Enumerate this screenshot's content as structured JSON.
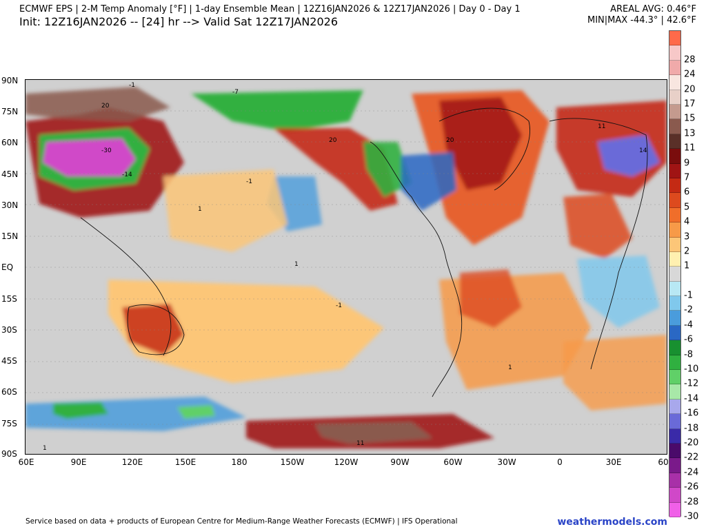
{
  "header": {
    "title": "ECMWF EPS | 2-M Temp Anomaly [°F] | 1-day Ensemble Mean | 12Z16JAN2026 & 12Z17JAN2026 | Day 0 - Day 1",
    "subtitle": "Init: 12Z16JAN2026 -- [24] hr --> Valid Sat 12Z17JAN2026",
    "areal_avg": "AREAL AVG: 0.46°F",
    "min_max": "MIN|MAX -44.3° | 42.6°F"
  },
  "map": {
    "lat_labels": [
      "90N",
      "75N",
      "60N",
      "45N",
      "30N",
      "15N",
      "EQ",
      "15S",
      "30S",
      "45S",
      "60S",
      "75S",
      "90S"
    ],
    "lon_labels": [
      "60E",
      "90E",
      "120E",
      "150E",
      "180",
      "150W",
      "120W",
      "90W",
      "60W",
      "30W",
      "0",
      "30E",
      "60"
    ],
    "contour_labels": [
      "-1",
      "1",
      "20",
      "-7",
      "-30",
      "-14",
      "14",
      "11"
    ]
  },
  "colorbar": {
    "levels": [
      {
        "label": "",
        "color": "#ff6a4a"
      },
      {
        "label": "28",
        "color": "#f7c8c8"
      },
      {
        "label": "24",
        "color": "#f0aaaa"
      },
      {
        "label": "20",
        "color": "#f8e6e0"
      },
      {
        "label": "17",
        "color": "#e8d0c8"
      },
      {
        "label": "15",
        "color": "#c49a8e"
      },
      {
        "label": "13",
        "color": "#8a5a4e"
      },
      {
        "label": "11",
        "color": "#5a3028"
      },
      {
        "label": "9",
        "color": "#7a0d0d"
      },
      {
        "label": "7",
        "color": "#a01414"
      },
      {
        "label": "6",
        "color": "#c42a14"
      },
      {
        "label": "5",
        "color": "#dd4a1e"
      },
      {
        "label": "4",
        "color": "#f06e2a"
      },
      {
        "label": "3",
        "color": "#f79a48"
      },
      {
        "label": "2",
        "color": "#fcc678"
      },
      {
        "label": "1",
        "color": "#fff0b0"
      },
      {
        "label": "",
        "color": "#d8d8d8"
      },
      {
        "label": "-1",
        "color": "#b8e8f4"
      },
      {
        "label": "-2",
        "color": "#80c8ec"
      },
      {
        "label": "-4",
        "color": "#4a9cdc"
      },
      {
        "label": "-6",
        "color": "#2a68c4"
      },
      {
        "label": "-8",
        "color": "#189030"
      },
      {
        "label": "-10",
        "color": "#30b040"
      },
      {
        "label": "-12",
        "color": "#60d068"
      },
      {
        "label": "-14",
        "color": "#a8e8a8"
      },
      {
        "label": "-16",
        "color": "#a8a8ec"
      },
      {
        "label": "-18",
        "color": "#6a6ad8"
      },
      {
        "label": "-20",
        "color": "#3a2aa8"
      },
      {
        "label": "-22",
        "color": "#4a0a6a"
      },
      {
        "label": "-24",
        "color": "#7a1a8a"
      },
      {
        "label": "-26",
        "color": "#a830a8"
      },
      {
        "label": "-28",
        "color": "#d048c8"
      },
      {
        "label": "-30",
        "color": "#f060e8"
      }
    ]
  },
  "footer": {
    "credit": "Service based on data + products of European Centre for Medium-Range Weather Forecasts (ECMWF) | IFS Operational",
    "brand": "weathermodels.com"
  },
  "colors": {
    "background_neutral": "#d0d0d0",
    "brand_blue": "#2a44c7"
  }
}
